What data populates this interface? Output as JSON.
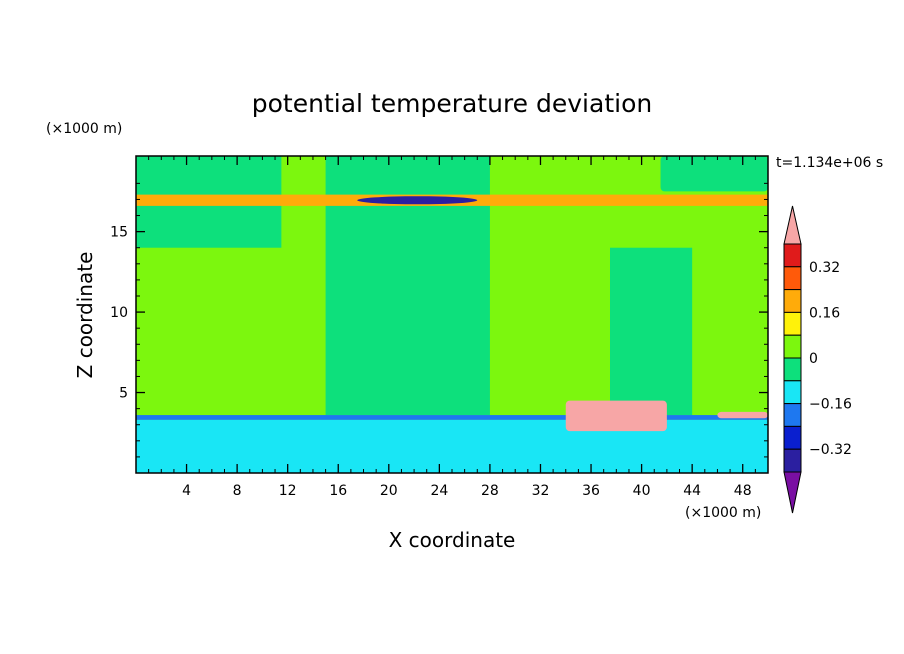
{
  "chart_data": {
    "type": "heatmap",
    "title": "potential temperature deviation",
    "xlabel": "X coordinate",
    "ylabel": "Z coordinate",
    "x_unit_label": "(×1000 m)",
    "y_unit_label": "(×1000 m)",
    "time_label": "t=1.134e+06 s",
    "xlim": [
      0,
      50
    ],
    "ylim": [
      0,
      19.7
    ],
    "x_ticks": [
      4,
      8,
      12,
      16,
      20,
      24,
      28,
      32,
      36,
      40,
      44,
      48
    ],
    "y_ticks": [
      5,
      10,
      15
    ],
    "colorbar": {
      "levels": [
        -0.4,
        -0.32,
        -0.24,
        -0.16,
        -0.08,
        0,
        0.08,
        0.16,
        0.24,
        0.32,
        0.4
      ],
      "labeled_ticks": [
        0.32,
        0.16,
        0,
        -0.16,
        -0.32
      ],
      "tick_labels": [
        "0.32",
        "0.16",
        "0",
        "−0.16",
        "−0.32"
      ],
      "colors": [
        "#7a0fa3",
        "#2b1fa0",
        "#0a1fcf",
        "#1e78f0",
        "#19e6f5",
        "#0de07c",
        "#7cf70e",
        "#fff20a",
        "#ffab0a",
        "#ff5a0a",
        "#e01b1b",
        "#f7a6a6"
      ]
    },
    "background_level": "0",
    "regions": [
      {
        "value": 0.04,
        "x": [
          0,
          50
        ],
        "z": [
          0,
          19.7
        ]
      },
      {
        "value": -0.04,
        "x": [
          0,
          11.5
        ],
        "z": [
          14,
          19.7
        ]
      },
      {
        "value": -0.04,
        "x": [
          15,
          28
        ],
        "z": [
          3.6,
          19.7
        ]
      },
      {
        "value": -0.04,
        "x": [
          37.5,
          44
        ],
        "z": [
          3.6,
          14
        ]
      },
      {
        "value": -0.04,
        "x": [
          41.5,
          50
        ],
        "z": [
          17.5,
          19.7
        ]
      },
      {
        "value": 0.2,
        "x": [
          0,
          50
        ],
        "z": [
          16.6,
          17.3
        ]
      },
      {
        "value": -0.36,
        "x": [
          17.5,
          27
        ],
        "z": [
          16.7,
          17.2
        ]
      },
      {
        "value": -0.2,
        "x": [
          0,
          50
        ],
        "z": [
          3.3,
          3.6
        ]
      },
      {
        "value": -0.12,
        "x": [
          0,
          50
        ],
        "z": [
          0,
          3.3
        ]
      },
      {
        "value": 0.44,
        "x": [
          34,
          42
        ],
        "z": [
          2.6,
          4.5
        ]
      },
      {
        "value": 0.44,
        "x": [
          46,
          50
        ],
        "z": [
          3.4,
          3.8
        ]
      }
    ]
  }
}
